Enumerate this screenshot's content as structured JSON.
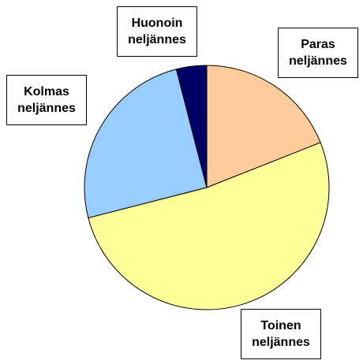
{
  "chart_data": {
    "type": "pie",
    "categories": [
      "Paras neljännes",
      "Toinen neljännes",
      "Kolmas neljännes",
      "Huonoin neljännes"
    ],
    "values": [
      19,
      52,
      25,
      4
    ],
    "colors": [
      "#ffcc99",
      "#ffff99",
      "#99ccff",
      "#000066"
    ]
  }
}
